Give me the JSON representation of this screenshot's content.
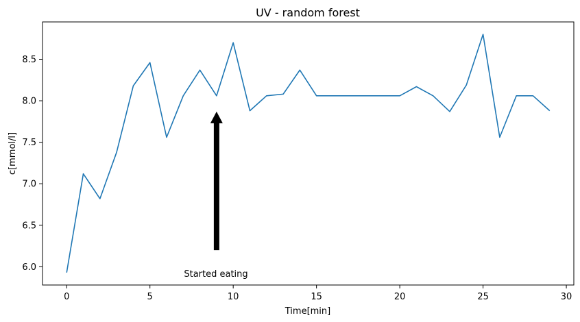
{
  "chart_data": {
    "type": "line",
    "title": "UV - random forest",
    "xlabel": "Time[min]",
    "ylabel": "c[mmol/l]",
    "xlim": [
      -1.45,
      30.45
    ],
    "ylim": [
      5.78,
      8.95
    ],
    "xticks": [
      0,
      5,
      10,
      15,
      20,
      25,
      30
    ],
    "yticks": [
      6.0,
      6.5,
      7.0,
      7.5,
      8.0,
      8.5
    ],
    "ytick_labels": [
      "6.0",
      "6.5",
      "7.0",
      "7.5",
      "8.0",
      "8.5"
    ],
    "grid": false,
    "series": [
      {
        "color": "#1f77b4",
        "x": [
          0,
          1,
          2,
          3,
          4,
          5,
          6,
          7,
          8,
          9,
          10,
          11,
          12,
          13,
          14,
          15,
          16,
          17,
          18,
          19,
          20,
          21,
          22,
          23,
          24,
          25,
          26,
          27,
          28,
          29
        ],
        "values": [
          5.93,
          7.12,
          6.82,
          7.38,
          8.18,
          8.46,
          7.56,
          8.06,
          8.37,
          8.06,
          8.7,
          7.88,
          8.06,
          8.08,
          8.37,
          8.06,
          8.06,
          8.06,
          8.06,
          8.06,
          8.06,
          8.17,
          8.06,
          7.87,
          8.19,
          8.8,
          7.56,
          8.06,
          8.06,
          7.88
        ]
      }
    ],
    "annotation": {
      "text": "Started eating",
      "arrow_x": 9,
      "arrow_tail_y": 6.2,
      "arrow_head_y": 7.87
    }
  }
}
